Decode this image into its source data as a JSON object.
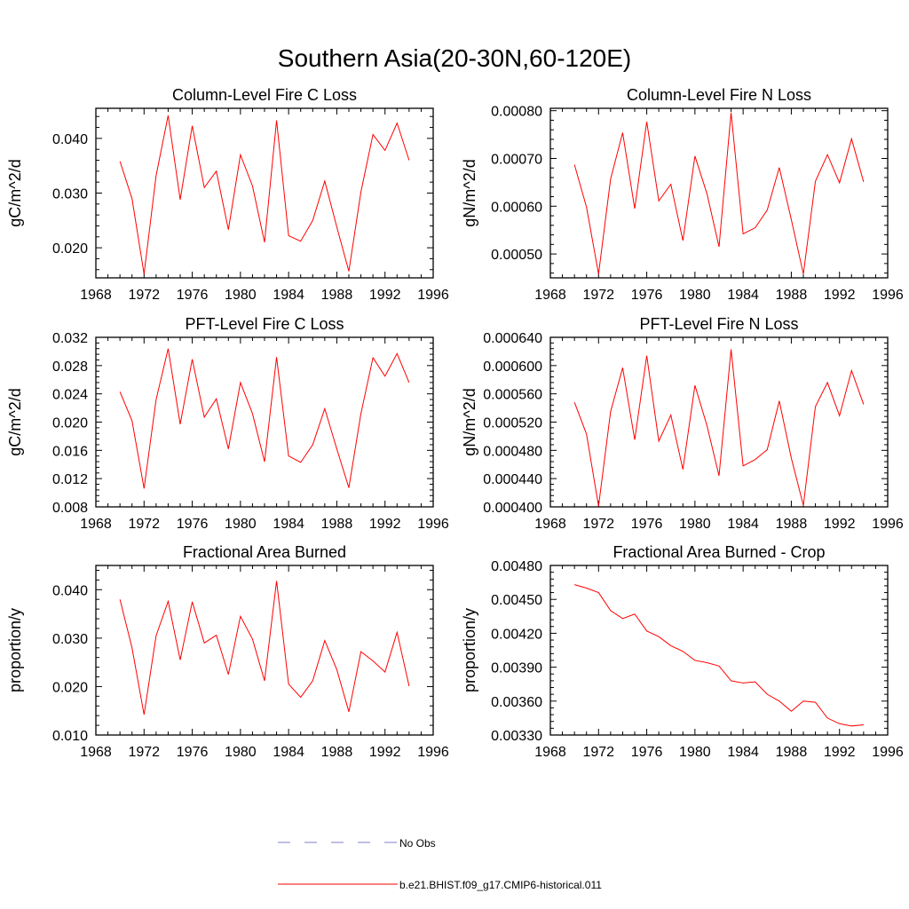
{
  "figure": {
    "title": "Southern Asia(20-30N,60-120E)"
  },
  "legend": {
    "entries": [
      {
        "label": "No Obs",
        "color": "#7f7fcc",
        "style": "dashed"
      },
      {
        "label": "b.e21.BHIST.f09_g17.CMIP6-historical.011",
        "color": "#ff0000",
        "style": "solid"
      }
    ]
  },
  "colors": {
    "series": "#ff0000",
    "obs": "#7f7fcc"
  },
  "chart_data": [
    {
      "type": "line",
      "title": "Column-Level Fire C Loss",
      "ylabel": "gC/m^2/d",
      "xlim": [
        1968,
        1996
      ],
      "xticks": [
        1968,
        1972,
        1976,
        1980,
        1984,
        1988,
        1992,
        1996
      ],
      "ylim": [
        0.0145,
        0.0455
      ],
      "yticks": [
        0.02,
        0.03,
        0.04
      ],
      "ytick_labels": [
        "0.020",
        "0.030",
        "0.040"
      ],
      "x": [
        1970,
        1971,
        1972,
        1973,
        1974,
        1975,
        1976,
        1977,
        1978,
        1979,
        1980,
        1981,
        1982,
        1983,
        1984,
        1985,
        1986,
        1987,
        1988,
        1989,
        1990,
        1991,
        1992,
        1993,
        1994
      ],
      "series": [
        {
          "values": [
            0.0358,
            0.029,
            0.0152,
            0.0332,
            0.0442,
            0.0288,
            0.0423,
            0.031,
            0.034,
            0.0233,
            0.037,
            0.0313,
            0.021,
            0.0433,
            0.0222,
            0.0212,
            0.025,
            0.0322,
            0.0238,
            0.0157,
            0.0302,
            0.0407,
            0.0378,
            0.0428,
            0.036
          ]
        }
      ]
    },
    {
      "type": "line",
      "title": "Column-Level Fire N Loss",
      "ylabel": "gN/m^2/d",
      "xlim": [
        1968,
        1996
      ],
      "xticks": [
        1968,
        1972,
        1976,
        1980,
        1984,
        1988,
        1992,
        1996
      ],
      "ylim": [
        0.00045,
        0.000805
      ],
      "yticks": [
        0.0005,
        0.0006,
        0.0007,
        0.0008
      ],
      "ytick_labels": [
        "0.00050",
        "0.00060",
        "0.00070",
        "0.00080"
      ],
      "x": [
        1970,
        1971,
        1972,
        1973,
        1974,
        1975,
        1976,
        1977,
        1978,
        1979,
        1980,
        1981,
        1982,
        1983,
        1984,
        1985,
        1986,
        1987,
        1988,
        1989,
        1990,
        1991,
        1992,
        1993,
        1994
      ],
      "series": [
        {
          "values": [
            0.000687,
            0.000598,
            0.000458,
            0.000657,
            0.000754,
            0.000595,
            0.000777,
            0.000611,
            0.000646,
            0.000528,
            0.000705,
            0.000626,
            0.000515,
            0.000796,
            0.000542,
            0.000555,
            0.000592,
            0.000681,
            0.000572,
            0.000458,
            0.000652,
            0.000708,
            0.000649,
            0.000741,
            0.000651
          ]
        }
      ]
    },
    {
      "type": "line",
      "title": "PFT-Level Fire C Loss",
      "ylabel": "gC/m^2/d",
      "xlim": [
        1968,
        1996
      ],
      "xticks": [
        1968,
        1972,
        1976,
        1980,
        1984,
        1988,
        1992,
        1996
      ],
      "ylim": [
        0.008,
        0.032
      ],
      "yticks": [
        0.008,
        0.012,
        0.016,
        0.02,
        0.024,
        0.028,
        0.032
      ],
      "ytick_labels": [
        "0.008",
        "0.012",
        "0.016",
        "0.020",
        "0.024",
        "0.028",
        "0.032"
      ],
      "x": [
        1970,
        1971,
        1972,
        1973,
        1974,
        1975,
        1976,
        1977,
        1978,
        1979,
        1980,
        1981,
        1982,
        1983,
        1984,
        1985,
        1986,
        1987,
        1988,
        1989,
        1990,
        1991,
        1992,
        1993,
        1994
      ],
      "series": [
        {
          "values": [
            0.0243,
            0.0202,
            0.0106,
            0.0232,
            0.0304,
            0.0197,
            0.0289,
            0.0207,
            0.0233,
            0.0162,
            0.0256,
            0.0212,
            0.0144,
            0.0292,
            0.0152,
            0.0143,
            0.0168,
            0.0219,
            0.0162,
            0.0107,
            0.0212,
            0.0291,
            0.0265,
            0.0297,
            0.0256
          ]
        }
      ]
    },
    {
      "type": "line",
      "title": "PFT-Level Fire N Loss",
      "ylabel": "gN/m^2/d",
      "xlim": [
        1968,
        1996
      ],
      "xticks": [
        1968,
        1972,
        1976,
        1980,
        1984,
        1988,
        1992,
        1996
      ],
      "ylim": [
        0.0004,
        0.00064
      ],
      "yticks": [
        0.0004,
        0.00044,
        0.00048,
        0.00052,
        0.00056,
        0.0006,
        0.00064
      ],
      "ytick_labels": [
        "0.000400",
        "0.000440",
        "0.000480",
        "0.000520",
        "0.000560",
        "0.000600",
        "0.000640"
      ],
      "x": [
        1970,
        1971,
        1972,
        1973,
        1974,
        1975,
        1976,
        1977,
        1978,
        1979,
        1980,
        1981,
        1982,
        1983,
        1984,
        1985,
        1986,
        1987,
        1988,
        1989,
        1990,
        1991,
        1992,
        1993,
        1994
      ],
      "series": [
        {
          "values": [
            0.000548,
            0.000503,
            0.000401,
            0.000535,
            0.000597,
            0.000495,
            0.000614,
            0.000493,
            0.00053,
            0.000453,
            0.000572,
            0.000515,
            0.000444,
            0.000623,
            0.000458,
            0.000467,
            0.000481,
            0.00055,
            0.000469,
            0.000402,
            0.000542,
            0.000576,
            0.000529,
            0.000593,
            0.000545
          ]
        }
      ]
    },
    {
      "type": "line",
      "title": "Fractional Area Burned",
      "ylabel": "proportion/y",
      "xlim": [
        1968,
        1996
      ],
      "xticks": [
        1968,
        1972,
        1976,
        1980,
        1984,
        1988,
        1992,
        1996
      ],
      "ylim": [
        0.01,
        0.045
      ],
      "yticks": [
        0.01,
        0.02,
        0.03,
        0.04
      ],
      "ytick_labels": [
        "0.010",
        "0.020",
        "0.030",
        "0.040"
      ],
      "x": [
        1970,
        1971,
        1972,
        1973,
        1974,
        1975,
        1976,
        1977,
        1978,
        1979,
        1980,
        1981,
        1982,
        1983,
        1984,
        1985,
        1986,
        1987,
        1988,
        1989,
        1990,
        1991,
        1992,
        1993,
        1994
      ],
      "series": [
        {
          "values": [
            0.038,
            0.028,
            0.0142,
            0.0305,
            0.0376,
            0.0255,
            0.0375,
            0.029,
            0.0306,
            0.0225,
            0.0345,
            0.0298,
            0.0212,
            0.0418,
            0.0205,
            0.0178,
            0.0212,
            0.0295,
            0.0235,
            0.0148,
            0.0272,
            0.0253,
            0.023,
            0.0312,
            0.0201
          ]
        }
      ]
    },
    {
      "type": "line",
      "title": "Fractional Area Burned - Crop",
      "ylabel": "proportion/y",
      "xlim": [
        1968,
        1996
      ],
      "xticks": [
        1968,
        1972,
        1976,
        1980,
        1984,
        1988,
        1992,
        1996
      ],
      "ylim": [
        0.0033,
        0.0048
      ],
      "yticks": [
        0.0033,
        0.0036,
        0.0039,
        0.0042,
        0.0045,
        0.0048
      ],
      "ytick_labels": [
        "0.00330",
        "0.00360",
        "0.00390",
        "0.00420",
        "0.00450",
        "0.00480"
      ],
      "x": [
        1970,
        1971,
        1972,
        1973,
        1974,
        1975,
        1976,
        1977,
        1978,
        1979,
        1980,
        1981,
        1982,
        1983,
        1984,
        1985,
        1986,
        1987,
        1988,
        1989,
        1990,
        1991,
        1992,
        1993,
        1994
      ],
      "series": [
        {
          "values": [
            0.00463,
            0.0046,
            0.00456,
            0.0044,
            0.00433,
            0.00437,
            0.00422,
            0.00417,
            0.00409,
            0.00404,
            0.00396,
            0.00394,
            0.00391,
            0.00378,
            0.00376,
            0.00377,
            0.00366,
            0.0036,
            0.00351,
            0.0036,
            0.00359,
            0.00345,
            0.0034,
            0.00338,
            0.00339
          ]
        }
      ]
    }
  ]
}
